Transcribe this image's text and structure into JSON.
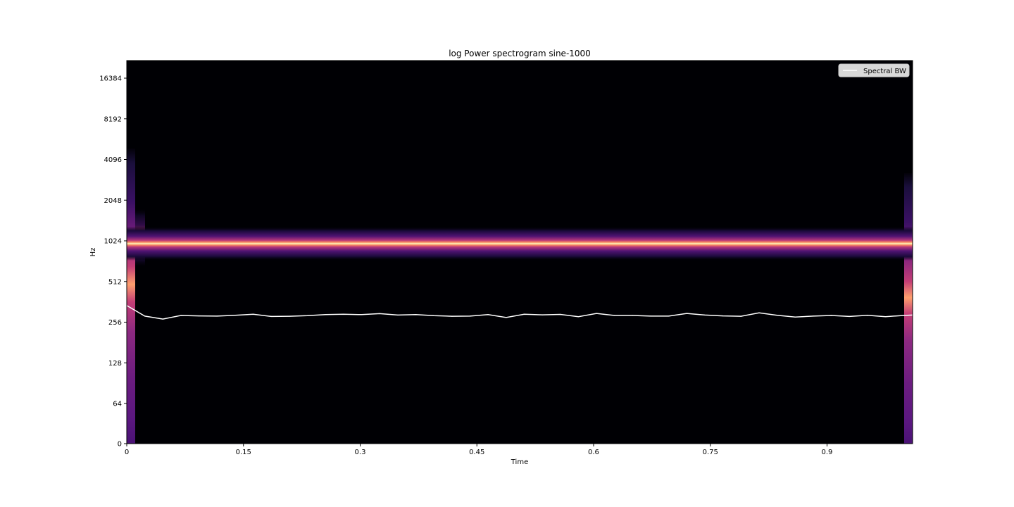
{
  "chart_data": {
    "type": "heatmap",
    "title": "log Power spectrogram sine-1000",
    "xlabel": "Time",
    "ylabel": "Hz",
    "xlim": [
      0,
      1.01
    ],
    "y_scale": "symlog-base2",
    "x_ticks": [
      {
        "value": 0,
        "label": "0"
      },
      {
        "value": 0.15,
        "label": "0.15"
      },
      {
        "value": 0.3,
        "label": "0.3"
      },
      {
        "value": 0.45,
        "label": "0.45"
      },
      {
        "value": 0.6,
        "label": "0.6"
      },
      {
        "value": 0.75,
        "label": "0.75"
      },
      {
        "value": 0.9,
        "label": "0.9"
      }
    ],
    "y_ticks": [
      {
        "value": 0,
        "label": "0"
      },
      {
        "value": 64,
        "label": "64"
      },
      {
        "value": 128,
        "label": "128"
      },
      {
        "value": 256,
        "label": "256"
      },
      {
        "value": 512,
        "label": "512"
      },
      {
        "value": 1024,
        "label": "1024"
      },
      {
        "value": 2048,
        "label": "2048"
      },
      {
        "value": 4096,
        "label": "4096"
      },
      {
        "value": 8192,
        "label": "8192"
      },
      {
        "value": 16384,
        "label": "16384"
      }
    ],
    "tone_hz": 1000,
    "colormap": "magma",
    "legend": {
      "position": "top-right",
      "entries": [
        "Spectral BW"
      ]
    },
    "series": [
      {
        "name": "Spectral BW",
        "color": "#ffffff",
        "x": [
          0,
          0.0232,
          0.0464,
          0.0697,
          0.0929,
          0.1161,
          0.1393,
          0.1625,
          0.1858,
          0.209,
          0.2322,
          0.2554,
          0.2786,
          0.3019,
          0.3251,
          0.3483,
          0.3715,
          0.3947,
          0.418,
          0.4412,
          0.4644,
          0.4876,
          0.5108,
          0.5341,
          0.5573,
          0.5805,
          0.6037,
          0.6269,
          0.6502,
          0.6734,
          0.6966,
          0.7198,
          0.743,
          0.7663,
          0.7895,
          0.8127,
          0.8359,
          0.8591,
          0.8824,
          0.9056,
          0.9288,
          0.952,
          0.9752,
          0.9985,
          1.0101
        ],
        "y": [
          340,
          284,
          270,
          287,
          285,
          284,
          288,
          293,
          282,
          283,
          286,
          291,
          293,
          291,
          296,
          289,
          291,
          286,
          283,
          284,
          291,
          277,
          293,
          290,
          292,
          281,
          297,
          287,
          287,
          284,
          284,
          297,
          289,
          285,
          283,
          300,
          288,
          279,
          284,
          287,
          282,
          288,
          281,
          287,
          289
        ]
      }
    ]
  }
}
